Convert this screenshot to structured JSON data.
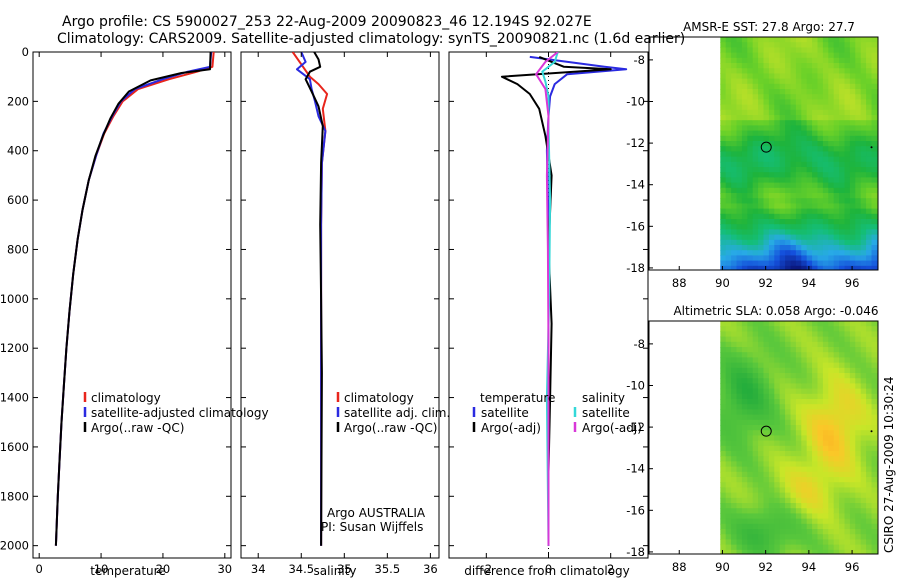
{
  "header": {
    "line1": "Argo profile: CS 5900027_253 22-Aug-2009 20090823_46 12.194S 92.027E",
    "line2": "Climatology: CARS2009. Satellite-adjusted climatology: synTS_20090821.nc (1.6d earlier)"
  },
  "colors": {
    "climatology": "#e8251c",
    "satellite": "#2a2ae0",
    "argo": "#000000",
    "satellite_salinity": "#33d8d8",
    "argo_salinity": "#d838d8"
  },
  "chart_data": [
    {
      "type": "line",
      "name": "temperature-profile",
      "xlabel": "temperature",
      "ylabel": "",
      "xlim": [
        -1,
        31
      ],
      "ylim": [
        2050,
        0
      ],
      "xticks": [
        "0",
        "10",
        "20",
        "30"
      ],
      "xtick_values": [
        0,
        10,
        20,
        30
      ],
      "yticks": [
        "0",
        "200",
        "400",
        "600",
        "800",
        "1000",
        "1200",
        "1400",
        "1600",
        "1800",
        "2000"
      ],
      "ytick_values": [
        0,
        200,
        400,
        600,
        800,
        1000,
        1200,
        1400,
        1600,
        1800,
        2000
      ],
      "legend": [
        "climatology",
        "satellite-adjusted climatology",
        "Argo(..raw -QC)"
      ],
      "series": [
        {
          "name": "climatology",
          "points": [
            [
              28.2,
              0
            ],
            [
              28.0,
              60
            ],
            [
              25.5,
              80
            ],
            [
              21,
              110
            ],
            [
              16,
              150
            ],
            [
              13.5,
              200
            ],
            [
              12,
              260
            ],
            [
              10.5,
              330
            ],
            [
              9.2,
              420
            ],
            [
              8.0,
              520
            ],
            [
              7.0,
              640
            ],
            [
              6.2,
              760
            ],
            [
              5.5,
              900
            ],
            [
              4.9,
              1050
            ],
            [
              4.4,
              1200
            ],
            [
              4.0,
              1350
            ],
            [
              3.6,
              1500
            ],
            [
              3.3,
              1650
            ],
            [
              3.0,
              1800
            ],
            [
              2.7,
              2000
            ]
          ]
        },
        {
          "name": "satellite",
          "points": [
            [
              27.8,
              0
            ],
            [
              27.6,
              60
            ],
            [
              24,
              80
            ],
            [
              20,
              110
            ],
            [
              15.5,
              150
            ],
            [
              13.2,
              200
            ],
            [
              11.8,
              260
            ],
            [
              10.4,
              330
            ],
            [
              9.2,
              420
            ],
            [
              8.0,
              520
            ],
            [
              7.0,
              640
            ],
            [
              6.2,
              760
            ],
            [
              5.5,
              900
            ],
            [
              4.9,
              1050
            ],
            [
              4.4,
              1200
            ],
            [
              4.0,
              1350
            ],
            [
              3.6,
              1500
            ],
            [
              3.3,
              1650
            ],
            [
              3.0,
              1800
            ],
            [
              2.7,
              2000
            ]
          ]
        },
        {
          "name": "argo",
          "points": [
            [
              27.7,
              0
            ],
            [
              27.6,
              70
            ],
            [
              23,
              85
            ],
            [
              18,
              115
            ],
            [
              14.5,
              160
            ],
            [
              12.8,
              210
            ],
            [
              11.5,
              270
            ],
            [
              10.3,
              340
            ],
            [
              9.1,
              420
            ],
            [
              8.0,
              520
            ],
            [
              7.0,
              640
            ],
            [
              6.2,
              760
            ],
            [
              5.5,
              900
            ],
            [
              4.9,
              1050
            ],
            [
              4.4,
              1200
            ],
            [
              4.0,
              1350
            ],
            [
              3.6,
              1500
            ],
            [
              3.3,
              1650
            ],
            [
              3.0,
              1800
            ],
            [
              2.7,
              2000
            ]
          ]
        }
      ]
    },
    {
      "type": "line",
      "name": "salinity-profile",
      "xlabel": "salinity",
      "xlim": [
        33.8,
        36.1
      ],
      "ylim": [
        2050,
        0
      ],
      "xticks": [
        "34",
        "34.5",
        "35",
        "35.5",
        "36"
      ],
      "xtick_values": [
        34,
        34.5,
        35,
        35.5,
        36
      ],
      "legend": [
        "climatology",
        "satellite adj. clim.",
        "Argo(..raw -QC)"
      ],
      "annotations": [
        "Argo AUSTRALIA",
        "PI: Susan Wijffels"
      ],
      "series": [
        {
          "name": "climatology",
          "points": [
            [
              34.4,
              0
            ],
            [
              34.5,
              50
            ],
            [
              34.6,
              100
            ],
            [
              34.7,
              130
            ],
            [
              34.8,
              170
            ],
            [
              34.75,
              230
            ],
            [
              34.78,
              320
            ],
            [
              34.74,
              450
            ],
            [
              34.73,
              700
            ],
            [
              34.73,
              1000
            ],
            [
              34.73,
              1500
            ],
            [
              34.73,
              2000
            ]
          ]
        },
        {
          "name": "satellite",
          "points": [
            [
              34.5,
              0
            ],
            [
              34.55,
              40
            ],
            [
              34.45,
              70
            ],
            [
              34.6,
              110
            ],
            [
              34.62,
              150
            ],
            [
              34.66,
              200
            ],
            [
              34.7,
              260
            ],
            [
              34.78,
              320
            ],
            [
              34.74,
              450
            ],
            [
              34.73,
              700
            ],
            [
              34.73,
              1000
            ],
            [
              34.73,
              1500
            ],
            [
              34.73,
              2000
            ]
          ]
        },
        {
          "name": "argo",
          "points": [
            [
              34.65,
              0
            ],
            [
              34.7,
              30
            ],
            [
              34.72,
              60
            ],
            [
              34.6,
              80
            ],
            [
              34.55,
              110
            ],
            [
              34.62,
              160
            ],
            [
              34.7,
              220
            ],
            [
              34.75,
              300
            ],
            [
              34.73,
              450
            ],
            [
              34.72,
              700
            ],
            [
              34.73,
              1000
            ],
            [
              34.74,
              1300
            ],
            [
              34.73,
              2000
            ]
          ]
        }
      ]
    },
    {
      "type": "line",
      "name": "difference-profile",
      "xlabel": "difference from climatology",
      "xlim": [
        -3.2,
        3.2
      ],
      "ylim": [
        2050,
        0
      ],
      "xticks": [
        "-2",
        "0",
        "2"
      ],
      "xtick_values": [
        -2,
        0,
        2
      ],
      "legend_headers": [
        "temperature",
        "salinity"
      ],
      "legend": [
        "satellite",
        "Argo(-adj)",
        "satellite",
        "Argo(-adj)"
      ],
      "series": [
        {
          "name": "temperature satellite",
          "points": [
            [
              -0.6,
              20
            ],
            [
              1.8,
              60
            ],
            [
              2.5,
              70
            ],
            [
              0.6,
              90
            ],
            [
              0.2,
              130
            ],
            [
              0.05,
              180
            ],
            [
              0.0,
              260
            ],
            [
              -0.05,
              400
            ],
            [
              0.0,
              700
            ],
            [
              0.0,
              1000
            ],
            [
              0.0,
              1500
            ],
            [
              0.0,
              2000
            ]
          ]
        },
        {
          "name": "temperature Argo(-adj)",
          "points": [
            [
              -0.3,
              20
            ],
            [
              0.5,
              60
            ],
            [
              2.0,
              70
            ],
            [
              -1.5,
              100
            ],
            [
              -1.0,
              130
            ],
            [
              -0.6,
              170
            ],
            [
              -0.3,
              230
            ],
            [
              -0.1,
              340
            ],
            [
              0.1,
              500
            ],
            [
              0.0,
              800
            ],
            [
              0.1,
              1100
            ],
            [
              0.05,
              1400
            ],
            [
              0.0,
              1700
            ],
            [
              0.0,
              2000
            ]
          ]
        },
        {
          "name": "salinity satellite",
          "points": [
            [
              0.3,
              0
            ],
            [
              0.2,
              40
            ],
            [
              -0.2,
              80
            ],
            [
              -0.1,
              120
            ],
            [
              0.0,
              180
            ],
            [
              0.0,
              300
            ],
            [
              0.05,
              600
            ],
            [
              0.02,
              1000
            ],
            [
              -0.05,
              1400
            ],
            [
              0.0,
              2000
            ]
          ]
        },
        {
          "name": "salinity Argo(-adj)",
          "points": [
            [
              0.3,
              0
            ],
            [
              -0.1,
              40
            ],
            [
              -0.4,
              90
            ],
            [
              -0.1,
              150
            ],
            [
              0.0,
              260
            ],
            [
              -0.05,
              500
            ],
            [
              -0.02,
              800
            ],
            [
              0.0,
              1200
            ],
            [
              0.0,
              2000
            ]
          ]
        }
      ]
    },
    {
      "type": "heatmap",
      "name": "sst-map",
      "title": "AMSR-E SST: 27.8 Argo: 27.7",
      "xlim": [
        86.6,
        97.2
      ],
      "ylim": [
        -18.1,
        -6.9
      ],
      "xticks": [
        "88",
        "90",
        "92",
        "94",
        "96"
      ],
      "xtick_values": [
        88,
        90,
        92,
        94,
        96
      ],
      "yticks": [
        "-8",
        "-10",
        "-12",
        "-14",
        "-16",
        "-18"
      ],
      "ytick_values": [
        -8,
        -10,
        -12,
        -14,
        -16,
        -18
      ],
      "data_lon_range": [
        89.9,
        97.2
      ],
      "argo_position": [
        92.027,
        -12.194
      ]
    },
    {
      "type": "heatmap",
      "name": "sla-map",
      "title": "Altimetric SLA: 0.058 Argo: -0.046",
      "xlim": [
        86.6,
        97.2
      ],
      "ylim": [
        -18.1,
        -6.9
      ],
      "xticks": [
        "88",
        "90",
        "92",
        "94",
        "96"
      ],
      "xtick_values": [
        88,
        90,
        92,
        94,
        96
      ],
      "yticks": [
        "-8",
        "-10",
        "-12",
        "-14",
        "-16",
        "-18"
      ],
      "ytick_values": [
        -8,
        -10,
        -12,
        -14,
        -16,
        -18
      ],
      "data_lon_range": [
        89.9,
        97.2
      ],
      "argo_position": [
        92.027,
        -12.194
      ]
    }
  ],
  "footer": {
    "credit": "CSIRO 27-Aug-2009 10:30:24"
  }
}
